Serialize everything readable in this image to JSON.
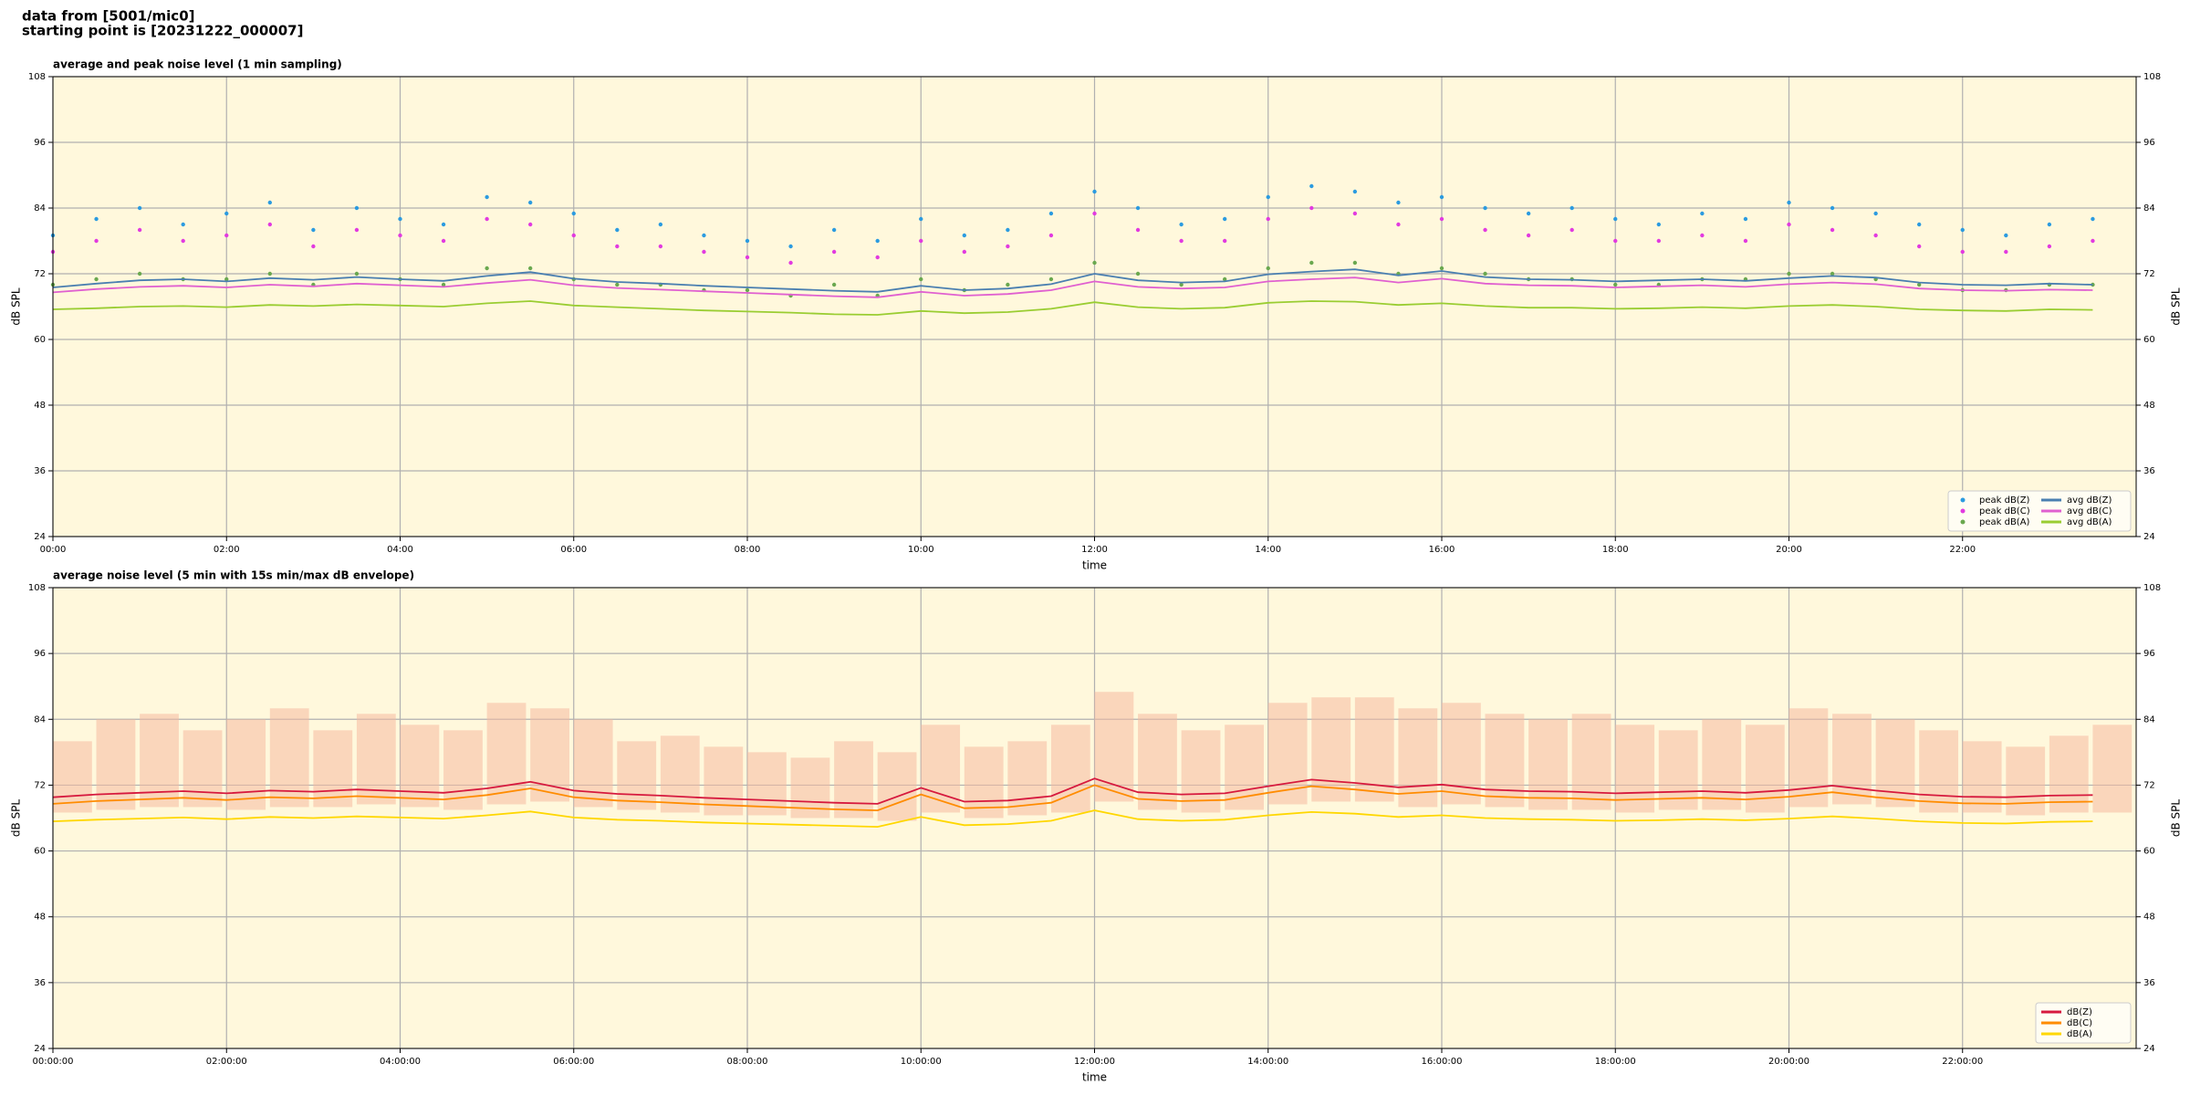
{
  "header": {
    "lines": [
      "data from [5001/mic0]",
      "starting point is [20231222_000007]"
    ]
  },
  "chart_data": [
    {
      "type": "line",
      "title": "average and peak noise level (1 min sampling)",
      "xlabel": "time",
      "ylabel": "dB SPL",
      "background": "#fff8dc",
      "grid": true,
      "mirror_y": true,
      "legend": "lower right",
      "legend_ncol": 2,
      "xlim": [
        0,
        24
      ],
      "ylim": [
        24,
        108
      ],
      "yticks": [
        24,
        36,
        48,
        60,
        72,
        84,
        96,
        108
      ],
      "xticks": [
        {
          "value": 0,
          "label": "00:00"
        },
        {
          "value": 2,
          "label": "02:00"
        },
        {
          "value": 4,
          "label": "04:00"
        },
        {
          "value": 6,
          "label": "06:00"
        },
        {
          "value": 8,
          "label": "08:00"
        },
        {
          "value": 10,
          "label": "10:00"
        },
        {
          "value": 12,
          "label": "12:00"
        },
        {
          "value": 14,
          "label": "14:00"
        },
        {
          "value": 16,
          "label": "16:00"
        },
        {
          "value": 18,
          "label": "18:00"
        },
        {
          "value": 20,
          "label": "20:00"
        },
        {
          "value": 22,
          "label": "22:00"
        }
      ],
      "x": [
        0,
        0.5,
        1,
        1.5,
        2,
        2.5,
        3,
        3.5,
        4,
        4.5,
        5,
        5.5,
        6,
        6.5,
        7,
        7.5,
        8,
        8.5,
        9,
        9.5,
        10,
        10.5,
        11,
        11.5,
        12,
        12.5,
        13,
        13.5,
        14,
        14.5,
        15,
        15.5,
        16,
        16.5,
        17,
        17.5,
        18,
        18.5,
        19,
        19.5,
        20,
        20.5,
        21,
        21.5,
        22,
        22.5,
        23,
        23.5
      ],
      "series": [
        {
          "name": "peak dB(Z)",
          "style": "markers",
          "color": "#2b9be0",
          "values": [
            79,
            82,
            84,
            81,
            83,
            85,
            80,
            84,
            82,
            81,
            86,
            85,
            83,
            80,
            81,
            79,
            78,
            77,
            80,
            78,
            82,
            79,
            80,
            83,
            87,
            84,
            81,
            82,
            86,
            88,
            87,
            85,
            86,
            84,
            83,
            84,
            82,
            81,
            83,
            82,
            85,
            84,
            83,
            81,
            80,
            79,
            81,
            82
          ]
        },
        {
          "name": "peak dB(C)",
          "style": "markers",
          "color": "#e23ae0",
          "values": [
            76,
            78,
            80,
            78,
            79,
            81,
            77,
            80,
            79,
            78,
            82,
            81,
            79,
            77,
            77,
            76,
            75,
            74,
            76,
            75,
            78,
            76,
            77,
            79,
            83,
            80,
            78,
            78,
            82,
            84,
            83,
            81,
            82,
            80,
            79,
            80,
            78,
            78,
            79,
            78,
            81,
            80,
            79,
            77,
            76,
            76,
            77,
            78
          ]
        },
        {
          "name": "peak dB(A)",
          "style": "markers",
          "color": "#6aa84f",
          "values": [
            70,
            71,
            72,
            71,
            71,
            72,
            70,
            72,
            71,
            70,
            73,
            73,
            71,
            70,
            70,
            69,
            69,
            68,
            70,
            68,
            71,
            69,
            70,
            71,
            74,
            72,
            70,
            71,
            73,
            74,
            74,
            72,
            73,
            72,
            71,
            71,
            70,
            70,
            71,
            71,
            72,
            72,
            71,
            70,
            69,
            69,
            70,
            70
          ]
        },
        {
          "name": "avg dB(Z)",
          "style": "line",
          "color": "#4a7fb0",
          "values": [
            69.5,
            70.2,
            70.8,
            71.0,
            70.6,
            71.2,
            70.9,
            71.4,
            71.0,
            70.7,
            71.6,
            72.3,
            71.1,
            70.5,
            70.2,
            69.8,
            69.5,
            69.2,
            68.9,
            68.7,
            69.8,
            69.0,
            69.3,
            70.1,
            72.0,
            70.8,
            70.4,
            70.6,
            71.9,
            72.4,
            72.8,
            71.7,
            72.5,
            71.4,
            71.0,
            70.9,
            70.6,
            70.8,
            71.0,
            70.7,
            71.2,
            71.6,
            71.3,
            70.4,
            70.0,
            69.9,
            70.2,
            70.0
          ]
        },
        {
          "name": "avg dB(C)",
          "style": "line",
          "color": "#e060d0",
          "values": [
            68.6,
            69.2,
            69.6,
            69.8,
            69.5,
            70.0,
            69.7,
            70.2,
            69.9,
            69.6,
            70.3,
            70.9,
            69.9,
            69.4,
            69.1,
            68.8,
            68.5,
            68.2,
            67.9,
            67.7,
            68.7,
            68.0,
            68.3,
            69.0,
            70.6,
            69.6,
            69.3,
            69.5,
            70.6,
            71.0,
            71.3,
            70.4,
            71.1,
            70.2,
            69.9,
            69.8,
            69.5,
            69.7,
            69.9,
            69.6,
            70.1,
            70.4,
            70.1,
            69.3,
            69.0,
            68.9,
            69.1,
            69.0
          ]
        },
        {
          "name": "avg dB(A)",
          "style": "line",
          "color": "#9acd32",
          "values": [
            65.5,
            65.7,
            66.0,
            66.1,
            65.9,
            66.3,
            66.1,
            66.4,
            66.2,
            66.0,
            66.6,
            67.0,
            66.2,
            65.9,
            65.6,
            65.3,
            65.1,
            64.9,
            64.6,
            64.5,
            65.2,
            64.8,
            65.0,
            65.6,
            66.8,
            65.9,
            65.6,
            65.8,
            66.7,
            67.0,
            66.9,
            66.3,
            66.6,
            66.1,
            65.8,
            65.8,
            65.6,
            65.7,
            65.9,
            65.7,
            66.1,
            66.3,
            66.0,
            65.5,
            65.3,
            65.2,
            65.5,
            65.4
          ]
        }
      ]
    },
    {
      "type": "line",
      "title": "average noise level (5 min with 15s min/max dB envelope)",
      "xlabel": "time",
      "ylabel": "dB SPL",
      "background": "#fff8dc",
      "grid": true,
      "mirror_y": true,
      "legend": "lower right",
      "legend_ncol": 1,
      "xlim": [
        0,
        24
      ],
      "ylim": [
        24,
        108
      ],
      "yticks": [
        24,
        36,
        48,
        60,
        72,
        84,
        96,
        108
      ],
      "xticks": [
        {
          "value": 0,
          "label": "00:00:00"
        },
        {
          "value": 2,
          "label": "02:00:00"
        },
        {
          "value": 4,
          "label": "04:00:00"
        },
        {
          "value": 6,
          "label": "06:00:00"
        },
        {
          "value": 8,
          "label": "08:00:00"
        },
        {
          "value": 10,
          "label": "10:00:00"
        },
        {
          "value": 12,
          "label": "12:00:00"
        },
        {
          "value": 14,
          "label": "14:00:00"
        },
        {
          "value": 16,
          "label": "16:00:00"
        },
        {
          "value": 18,
          "label": "18:00:00"
        },
        {
          "value": 20,
          "label": "20:00:00"
        },
        {
          "value": 22,
          "label": "22:00:00"
        }
      ],
      "x": [
        0,
        0.5,
        1,
        1.5,
        2,
        2.5,
        3,
        3.5,
        4,
        4.5,
        5,
        5.5,
        6,
        6.5,
        7,
        7.5,
        8,
        8.5,
        9,
        9.5,
        10,
        10.5,
        11,
        11.5,
        12,
        12.5,
        13,
        13.5,
        14,
        14.5,
        15,
        15.5,
        16,
        16.5,
        17,
        17.5,
        18,
        18.5,
        19,
        19.5,
        20,
        20.5,
        21,
        21.5,
        22,
        22.5,
        23,
        23.5
      ],
      "envelope": {
        "color": "#f5b9a0",
        "max": [
          80,
          84,
          85,
          82,
          84,
          86,
          82,
          85,
          83,
          82,
          87,
          86,
          84,
          80,
          81,
          79,
          78,
          77,
          80,
          78,
          83,
          79,
          80,
          83,
          89,
          85,
          82,
          83,
          87,
          88,
          88,
          86,
          87,
          85,
          84,
          85,
          83,
          82,
          84,
          83,
          86,
          85,
          84,
          82,
          80,
          79,
          81,
          83
        ],
        "min": [
          67,
          67.5,
          68,
          68,
          67.5,
          68,
          68,
          68.5,
          68,
          67.5,
          68.5,
          69,
          68,
          67.5,
          67,
          66.5,
          66.5,
          66,
          66,
          65.5,
          67,
          66,
          66.5,
          67,
          69,
          67.5,
          67,
          67.5,
          68.5,
          69,
          69,
          68,
          68.5,
          68,
          67.5,
          67.5,
          67,
          67.5,
          67.5,
          67,
          68,
          68.5,
          68,
          67,
          67,
          66.5,
          67,
          67
        ]
      },
      "series": [
        {
          "name": "dB(Z)",
          "style": "line",
          "color": "#d6193e",
          "values": [
            69.8,
            70.3,
            70.6,
            70.9,
            70.5,
            71.0,
            70.8,
            71.2,
            70.9,
            70.6,
            71.4,
            72.6,
            71.0,
            70.4,
            70.1,
            69.7,
            69.4,
            69.1,
            68.8,
            68.6,
            71.5,
            69.0,
            69.2,
            70.0,
            73.2,
            70.7,
            70.3,
            70.5,
            71.8,
            73.0,
            72.4,
            71.6,
            72.1,
            71.2,
            70.9,
            70.8,
            70.5,
            70.7,
            70.9,
            70.6,
            71.1,
            71.9,
            71.0,
            70.3,
            69.9,
            69.8,
            70.1,
            70.2
          ]
        },
        {
          "name": "dB(C)",
          "style": "line",
          "color": "#ff8c00",
          "values": [
            68.6,
            69.1,
            69.4,
            69.7,
            69.3,
            69.8,
            69.6,
            70.0,
            69.7,
            69.4,
            70.2,
            71.4,
            69.8,
            69.2,
            68.9,
            68.5,
            68.2,
            67.9,
            67.6,
            67.4,
            70.3,
            67.8,
            68.0,
            68.8,
            72.0,
            69.5,
            69.1,
            69.3,
            70.6,
            71.8,
            71.2,
            70.4,
            70.9,
            70.0,
            69.7,
            69.6,
            69.3,
            69.5,
            69.7,
            69.4,
            69.9,
            70.7,
            69.8,
            69.1,
            68.7,
            68.6,
            68.9,
            69.0
          ]
        },
        {
          "name": "dB(A)",
          "style": "line",
          "color": "#ffd700",
          "values": [
            65.4,
            65.7,
            65.9,
            66.1,
            65.8,
            66.2,
            66.0,
            66.3,
            66.1,
            65.9,
            66.5,
            67.2,
            66.1,
            65.7,
            65.5,
            65.2,
            65.0,
            64.8,
            64.6,
            64.4,
            66.2,
            64.7,
            64.9,
            65.5,
            67.4,
            65.8,
            65.5,
            65.7,
            66.5,
            67.1,
            66.8,
            66.2,
            66.5,
            66.0,
            65.8,
            65.7,
            65.5,
            65.6,
            65.8,
            65.6,
            65.9,
            66.3,
            65.9,
            65.4,
            65.1,
            65.0,
            65.3,
            65.4
          ]
        }
      ]
    }
  ]
}
